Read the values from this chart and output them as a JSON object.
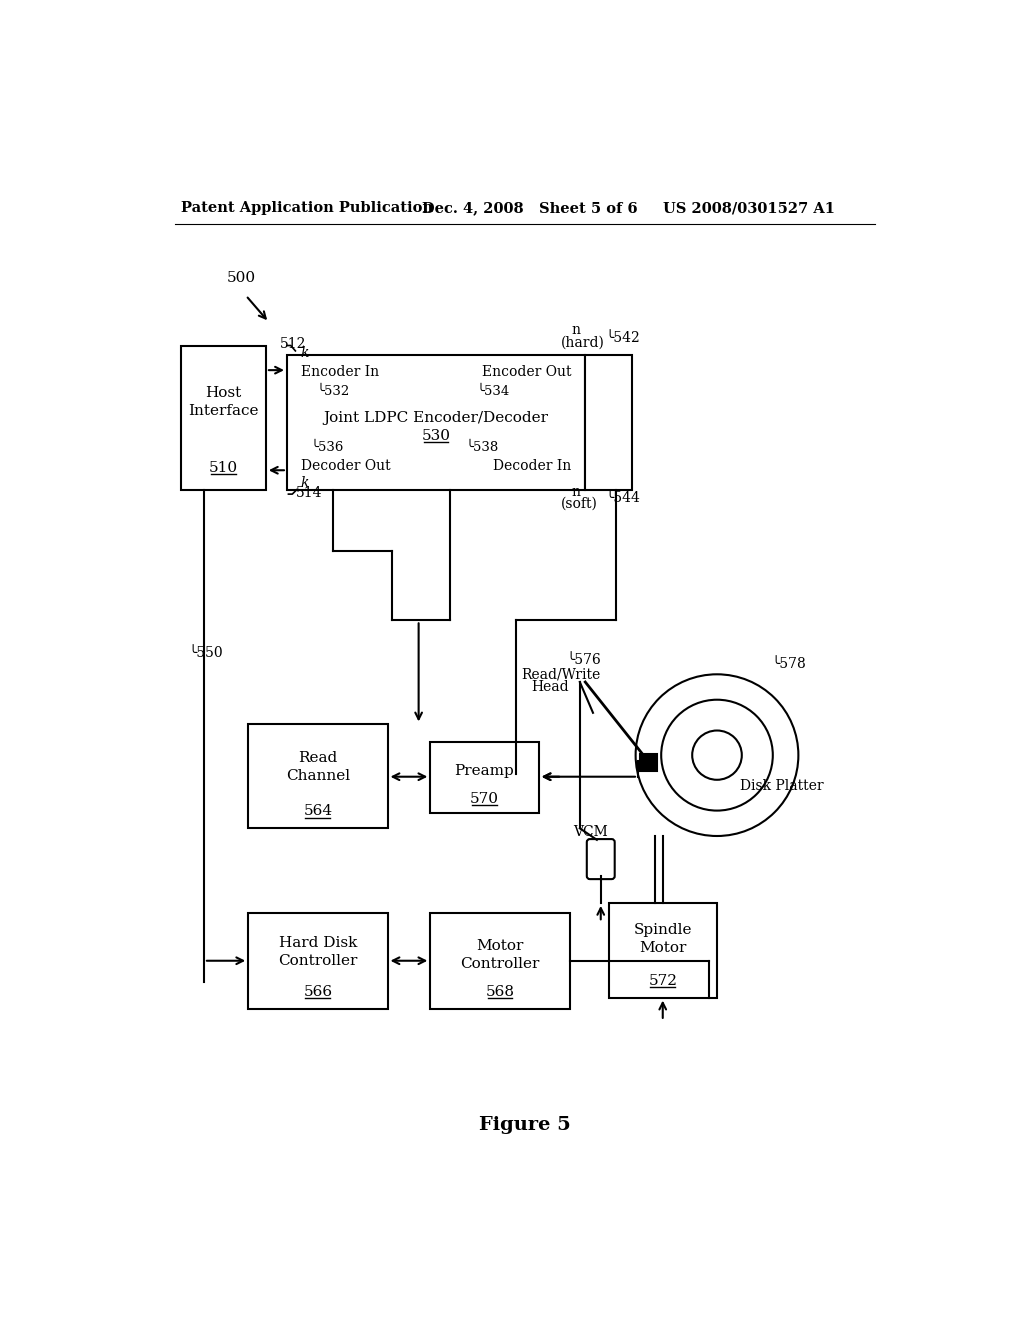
{
  "bg_color": "#ffffff",
  "header_left": "Patent Application Publication",
  "header_mid": "Dec. 4, 2008   Sheet 5 of 6",
  "header_right": "US 2008/0301527 A1",
  "figure_label": "Figure 5"
}
